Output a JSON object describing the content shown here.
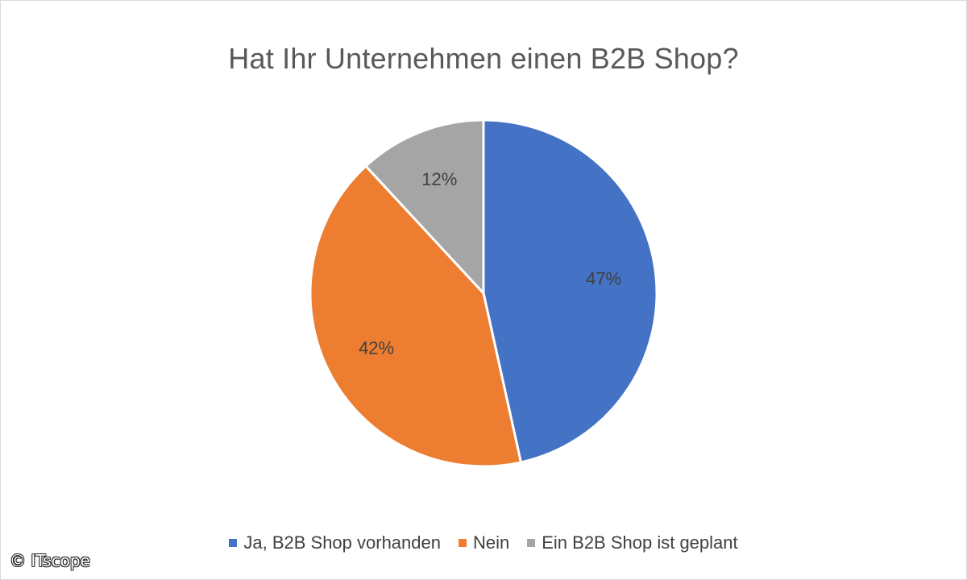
{
  "chart_data": {
    "type": "pie",
    "title": "Hat Ihr Unternehmen einen B2B Shop?",
    "slices": [
      {
        "name": "Ja, B2B Shop vorhanden",
        "value": 47,
        "label": "47%",
        "color": "#4472C4"
      },
      {
        "name": "Nein",
        "value": 42,
        "label": "42%",
        "color": "#ED7D31"
      },
      {
        "name": "Ein B2B Shop ist geplant",
        "value": 12,
        "label": "12%",
        "color": "#A5A5A5"
      }
    ],
    "legend_position": "bottom",
    "start_angle": "12 o'clock, clockwise"
  },
  "watermark": "© ITscope"
}
